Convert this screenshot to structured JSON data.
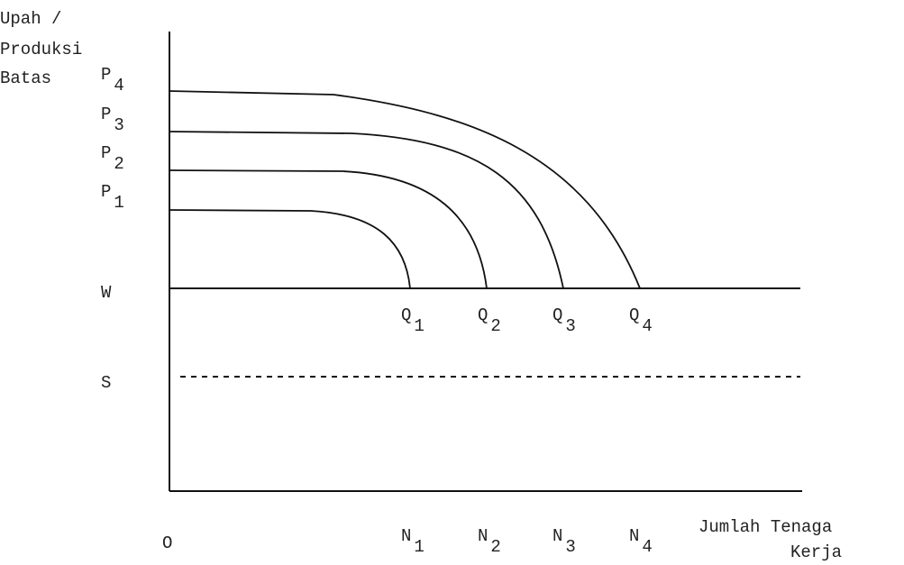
{
  "y_axis_label": [
    "Upah /",
    "Produksi",
    "Batas"
  ],
  "x_axis_label": [
    "Jumlah Tenaga",
    "Kerja"
  ],
  "origin": "O",
  "curve_labels": [
    {
      "base": "P",
      "sub": "1"
    },
    {
      "base": "P",
      "sub": "2"
    },
    {
      "base": "P",
      "sub": "3"
    },
    {
      "base": "P",
      "sub": "4"
    }
  ],
  "wage_label": "W",
  "s_label": "S",
  "points": [
    {
      "base": "Q",
      "sub": "1"
    },
    {
      "base": "Q",
      "sub": "2"
    },
    {
      "base": "Q",
      "sub": "3"
    },
    {
      "base": "Q",
      "sub": "4"
    }
  ],
  "employment": [
    {
      "base": "N",
      "sub": "1"
    },
    {
      "base": "N",
      "sub": "2"
    },
    {
      "base": "N",
      "sub": "3"
    },
    {
      "base": "N",
      "sub": "4"
    }
  ]
}
